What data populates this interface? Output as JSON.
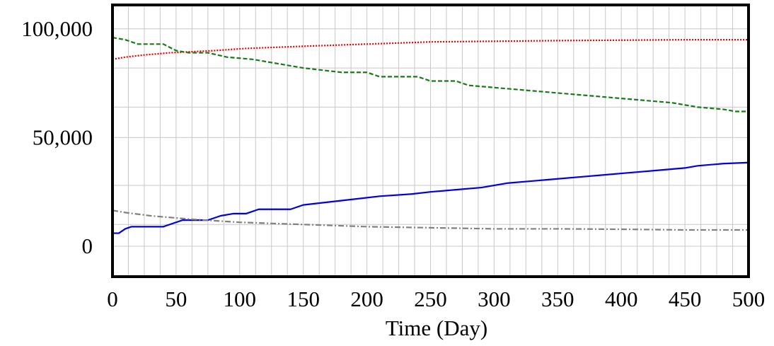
{
  "chart_data": {
    "type": "line",
    "xlabel": "Time (Day)",
    "ylabel": "",
    "title": "",
    "xlim": [
      0,
      500
    ],
    "ylim": [
      -14000,
      111000
    ],
    "x_ticks": [
      0,
      50,
      100,
      150,
      200,
      250,
      300,
      350,
      400,
      450,
      500
    ],
    "y_ticks": [
      0,
      50000,
      100000
    ],
    "y_tick_labels": [
      "0",
      "50,000",
      "100,000"
    ],
    "grid": true,
    "grid_x_step": 12.5,
    "grid_y_values": [
      -14000,
      0,
      10000,
      28000,
      50000,
      64000,
      82000,
      100000
    ],
    "series": [
      {
        "color": "#e00000",
        "dash": "2,2",
        "points": [
          [
            0,
            86000
          ],
          [
            10,
            87000
          ],
          [
            25,
            88000
          ],
          [
            45,
            89000
          ],
          [
            80,
            90000
          ],
          [
            105,
            91000
          ],
          [
            150,
            92000
          ],
          [
            200,
            93000
          ],
          [
            250,
            94000
          ],
          [
            300,
            94300
          ],
          [
            350,
            94600
          ],
          [
            400,
            94800
          ],
          [
            450,
            95000
          ],
          [
            500,
            95000
          ]
        ]
      },
      {
        "color": "#1a7a1a",
        "dash": "6,3",
        "points": [
          [
            0,
            96000
          ],
          [
            10,
            95000
          ],
          [
            20,
            93000
          ],
          [
            40,
            93000
          ],
          [
            50,
            90000
          ],
          [
            60,
            89000
          ],
          [
            75,
            89000
          ],
          [
            90,
            87000
          ],
          [
            110,
            86000
          ],
          [
            130,
            84000
          ],
          [
            150,
            82000
          ],
          [
            180,
            80000
          ],
          [
            200,
            80000
          ],
          [
            210,
            78000
          ],
          [
            240,
            78000
          ],
          [
            250,
            76000
          ],
          [
            270,
            76000
          ],
          [
            280,
            74000
          ],
          [
            300,
            73000
          ],
          [
            320,
            72000
          ],
          [
            340,
            71000
          ],
          [
            360,
            70000
          ],
          [
            380,
            69000
          ],
          [
            400,
            68000
          ],
          [
            420,
            67000
          ],
          [
            440,
            66000
          ],
          [
            460,
            64000
          ],
          [
            480,
            63000
          ],
          [
            490,
            62000
          ],
          [
            500,
            62000
          ]
        ]
      },
      {
        "color": "#0000e0",
        "dash": "",
        "points": [
          [
            0,
            6000
          ],
          [
            5,
            6000
          ],
          [
            10,
            8000
          ],
          [
            15,
            9000
          ],
          [
            40,
            9000
          ],
          [
            45,
            10000
          ],
          [
            55,
            12000
          ],
          [
            75,
            12000
          ],
          [
            85,
            14000
          ],
          [
            95,
            15000
          ],
          [
            105,
            15000
          ],
          [
            115,
            17000
          ],
          [
            140,
            17000
          ],
          [
            150,
            19000
          ],
          [
            180,
            21000
          ],
          [
            210,
            23000
          ],
          [
            235,
            24000
          ],
          [
            250,
            25000
          ],
          [
            270,
            26000
          ],
          [
            290,
            27000
          ],
          [
            310,
            29000
          ],
          [
            330,
            30000
          ],
          [
            350,
            31000
          ],
          [
            370,
            32000
          ],
          [
            390,
            33000
          ],
          [
            410,
            34000
          ],
          [
            430,
            35000
          ],
          [
            450,
            36000
          ],
          [
            460,
            37000
          ],
          [
            480,
            38000
          ],
          [
            500,
            38500
          ]
        ]
      },
      {
        "color": "#808080",
        "dash": "8,3,2,3",
        "points": [
          [
            0,
            16500
          ],
          [
            10,
            15500
          ],
          [
            30,
            14000
          ],
          [
            60,
            12500
          ],
          [
            100,
            11000
          ],
          [
            150,
            10000
          ],
          [
            200,
            9000
          ],
          [
            250,
            8500
          ],
          [
            300,
            8000
          ],
          [
            350,
            8000
          ],
          [
            400,
            7800
          ],
          [
            450,
            7500
          ],
          [
            500,
            7500
          ]
        ]
      }
    ]
  }
}
